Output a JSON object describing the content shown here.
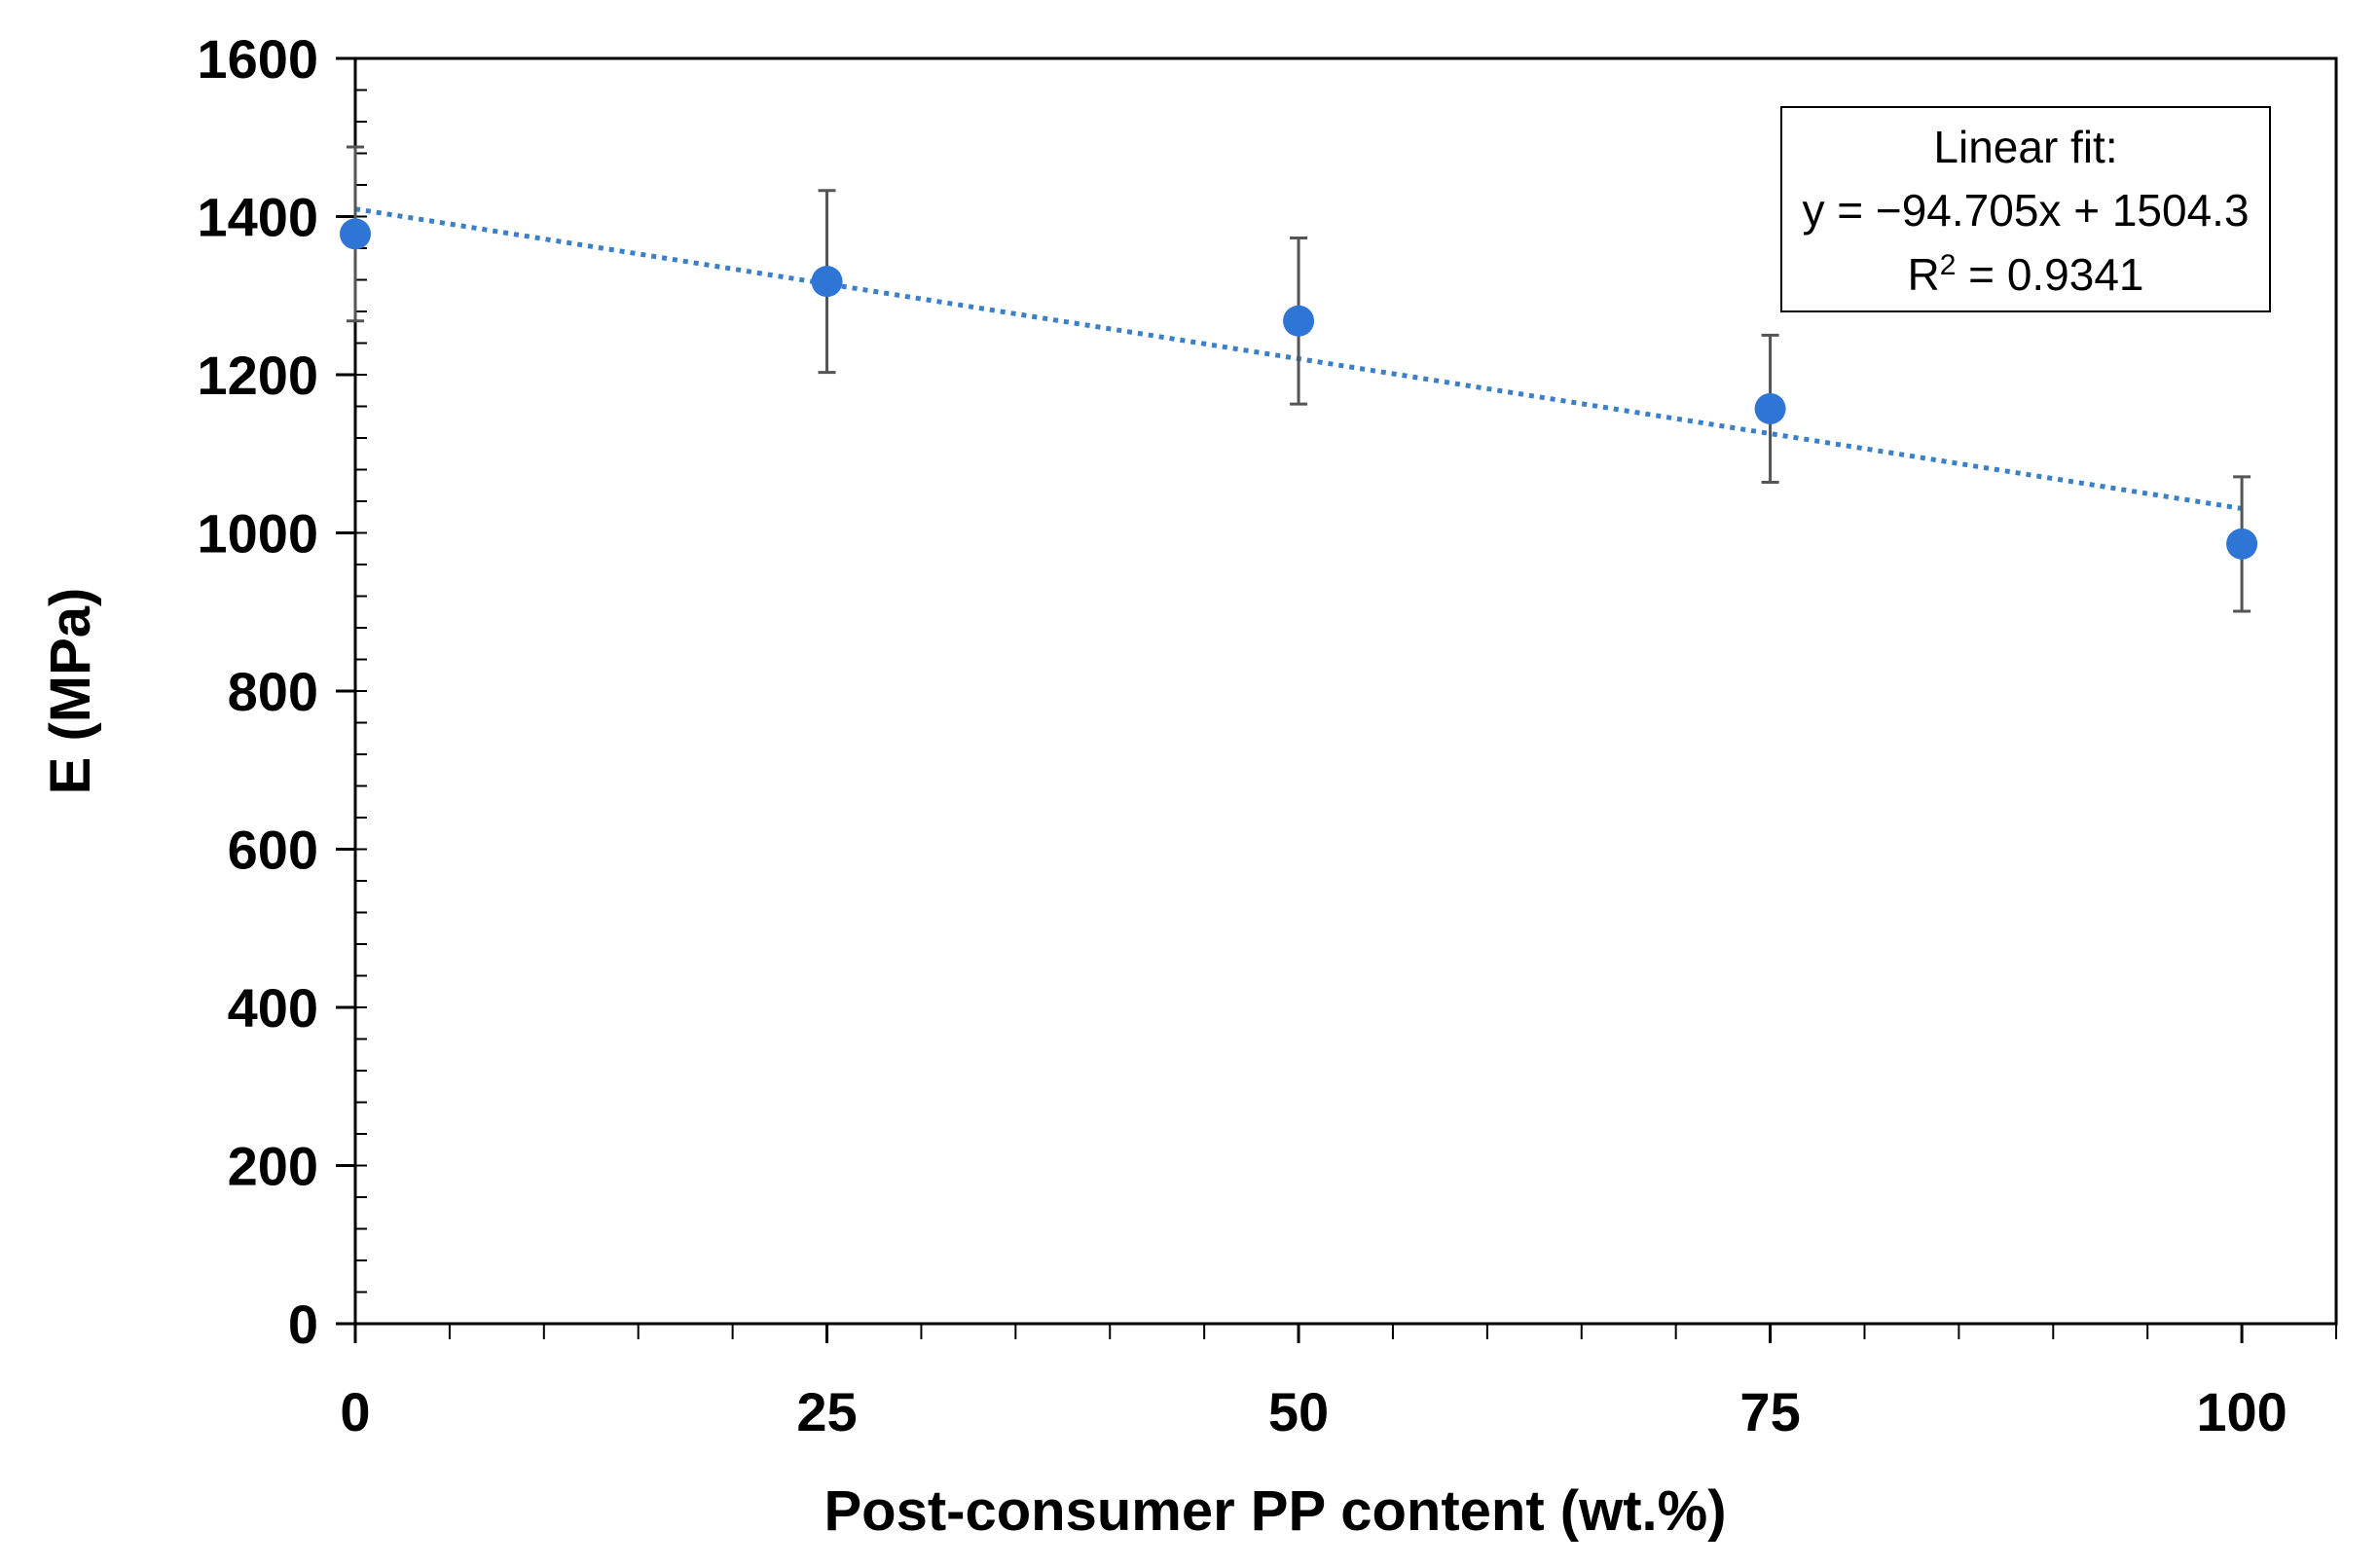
{
  "chart_data": {
    "type": "scatter",
    "xlabel": "Post-consumer PP content (wt.%)",
    "ylabel": "E (MPa)",
    "xlim": [
      0,
      105
    ],
    "ylim": [
      0,
      1600
    ],
    "x_ticks": [
      0,
      25,
      50,
      75,
      100
    ],
    "x_tick_labels": [
      "0",
      "25",
      "50",
      "75",
      "100"
    ],
    "x_minor_step": 5,
    "y_ticks": [
      0,
      200,
      400,
      600,
      800,
      1000,
      1200,
      1400,
      1600
    ],
    "y_tick_labels": [
      "0",
      "200",
      "400",
      "600",
      "800",
      "1000",
      "1200",
      "1400",
      "1600"
    ],
    "y_minor_step": 40,
    "grid": false,
    "series": [
      {
        "name": "E",
        "x": [
          0,
          25,
          50,
          75,
          100
        ],
        "y": [
          1378,
          1318,
          1268,
          1157,
          986
        ],
        "error": [
          110,
          115,
          105,
          93,
          85
        ],
        "color": "#2f75d6"
      }
    ],
    "trendline": {
      "type": "linear",
      "x_range": [
        0,
        100
      ],
      "y_start": 1409.6,
      "y_end": 1030.8,
      "color": "#3a7fc8"
    },
    "annotation": {
      "title": "Linear fit:",
      "equation": "y = −94.705x + 1504.3",
      "r2_label": "R",
      "r2_sup": "2",
      "r2_value": " = 0.9341"
    }
  }
}
